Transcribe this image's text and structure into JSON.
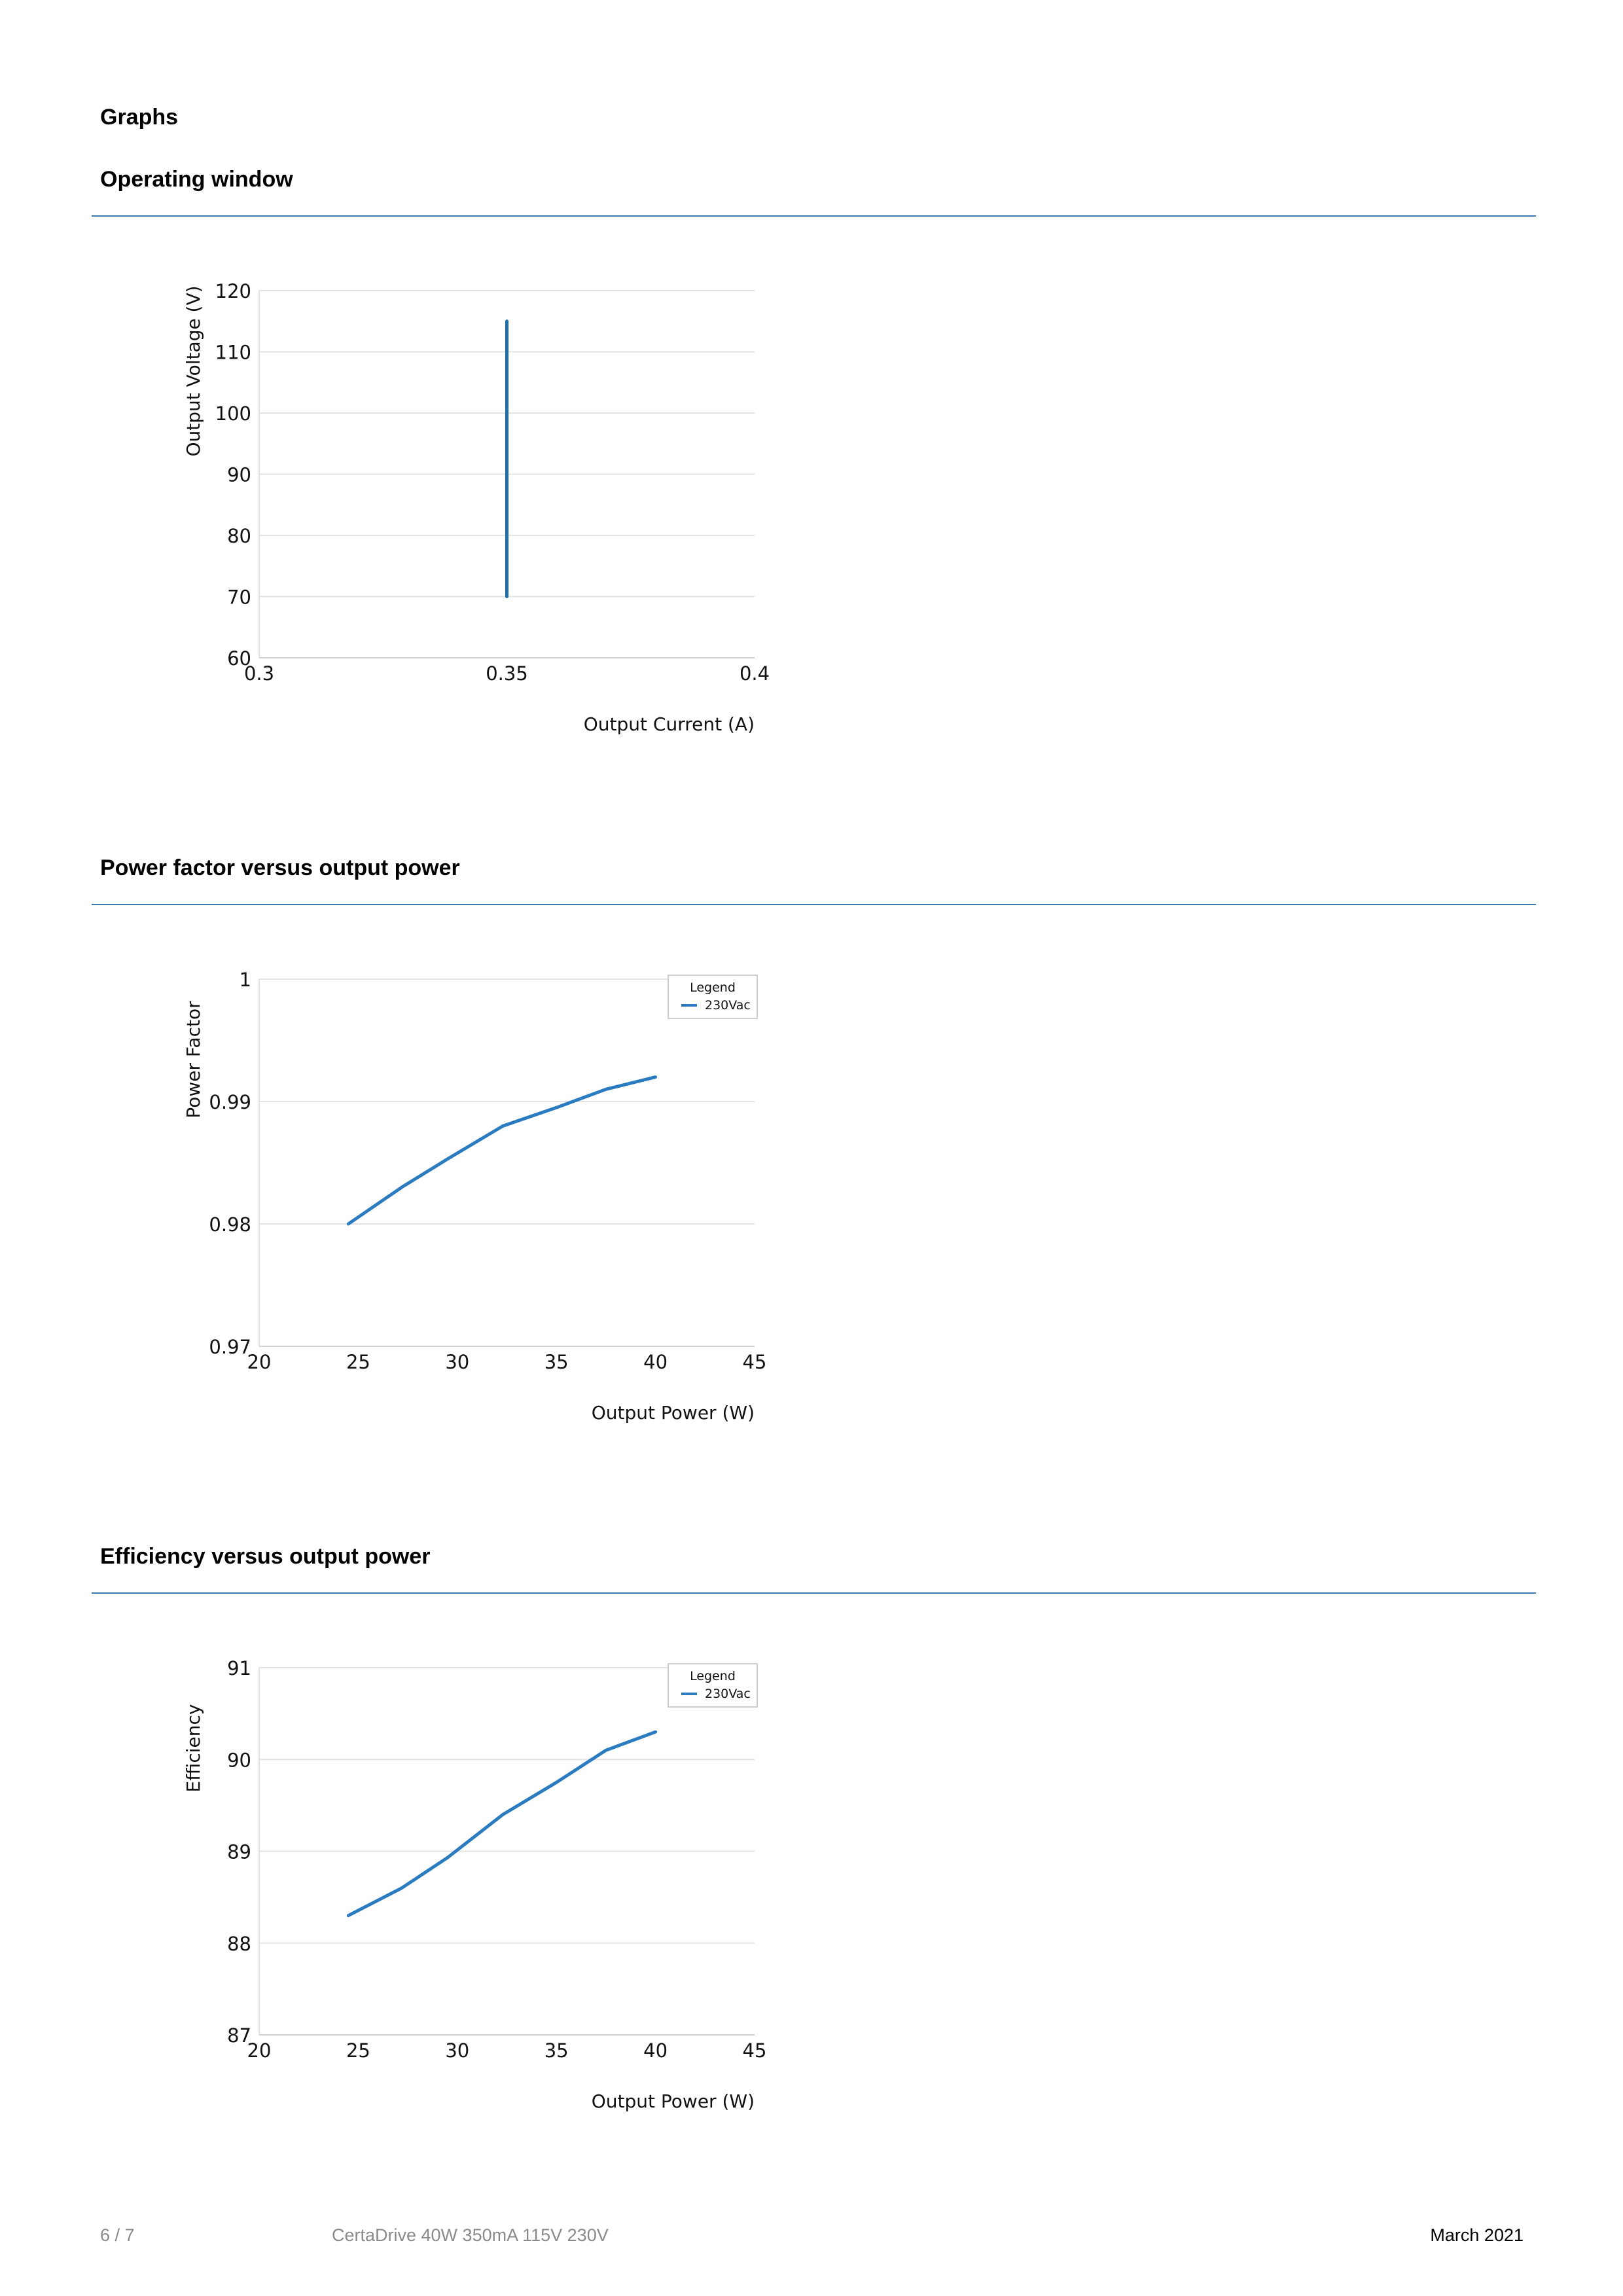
{
  "page": {
    "heading": "Graphs",
    "sections": [
      {
        "title": "Operating window"
      },
      {
        "title": "Power factor versus output power"
      },
      {
        "title": "Efficiency versus output power"
      }
    ]
  },
  "chart_data": [
    {
      "type": "line",
      "title": "",
      "xlabel": "Output Current (A)",
      "ylabel": "Output Voltage (V)",
      "xlim": [
        0.3,
        0.4
      ],
      "ylim": [
        60,
        120
      ],
      "xticks": [
        0.3,
        0.35,
        0.4
      ],
      "xtick_labels": [
        "0.3",
        "0.35",
        "0.4"
      ],
      "yticks": [
        60,
        70,
        80,
        90,
        100,
        110,
        120
      ],
      "ytick_labels": [
        "60",
        "70",
        "80",
        "90",
        "100",
        "110",
        "120"
      ],
      "grid": "horizontal",
      "legend": null,
      "series": [
        {
          "x": [
            0.35,
            0.35
          ],
          "y": [
            70,
            115
          ],
          "color": "#1f6fab"
        }
      ]
    },
    {
      "type": "line",
      "title": "",
      "xlabel": "Output Power (W)",
      "ylabel": "Power Factor",
      "xlim": [
        20,
        45
      ],
      "ylim": [
        0.97,
        1
      ],
      "xticks": [
        20,
        25,
        30,
        35,
        40,
        45
      ],
      "xtick_labels": [
        "20",
        "25",
        "30",
        "35",
        "40",
        "45"
      ],
      "yticks": [
        0.97,
        0.98,
        0.99,
        1
      ],
      "ytick_labels": [
        "0.97",
        "0.98",
        "0.99",
        "1"
      ],
      "grid": "horizontal",
      "legend": {
        "title": "Legend",
        "position": "top-right"
      },
      "series": [
        {
          "name": "230Vac",
          "color": "#2a7bbf",
          "x": [
            24.5,
            27.2,
            29.5,
            32.3,
            35,
            37.5,
            40
          ],
          "y": [
            0.98,
            0.983,
            0.9853,
            0.988,
            0.9895,
            0.991,
            0.992
          ]
        }
      ]
    },
    {
      "type": "line",
      "title": "",
      "xlabel": "Output Power (W)",
      "ylabel": "Efficiency",
      "xlim": [
        20,
        45
      ],
      "ylim": [
        87,
        91
      ],
      "xticks": [
        20,
        25,
        30,
        35,
        40,
        45
      ],
      "xtick_labels": [
        "20",
        "25",
        "30",
        "35",
        "40",
        "45"
      ],
      "yticks": [
        87,
        88,
        89,
        90,
        91
      ],
      "ytick_labels": [
        "87",
        "88",
        "89",
        "90",
        "91"
      ],
      "grid": "horizontal",
      "legend": {
        "title": "Legend",
        "position": "top-right"
      },
      "series": [
        {
          "name": "230Vac",
          "color": "#2a7bbf",
          "x": [
            24.5,
            27.2,
            29.5,
            32.3,
            35,
            37.5,
            40
          ],
          "y": [
            88.3,
            88.6,
            88.93,
            89.4,
            89.75,
            90.1,
            90.3
          ]
        }
      ]
    }
  ],
  "footer": {
    "page_number": "6 / 7",
    "product": "CertaDrive 40W 350mA 115V 230V",
    "date": "March 2021"
  }
}
